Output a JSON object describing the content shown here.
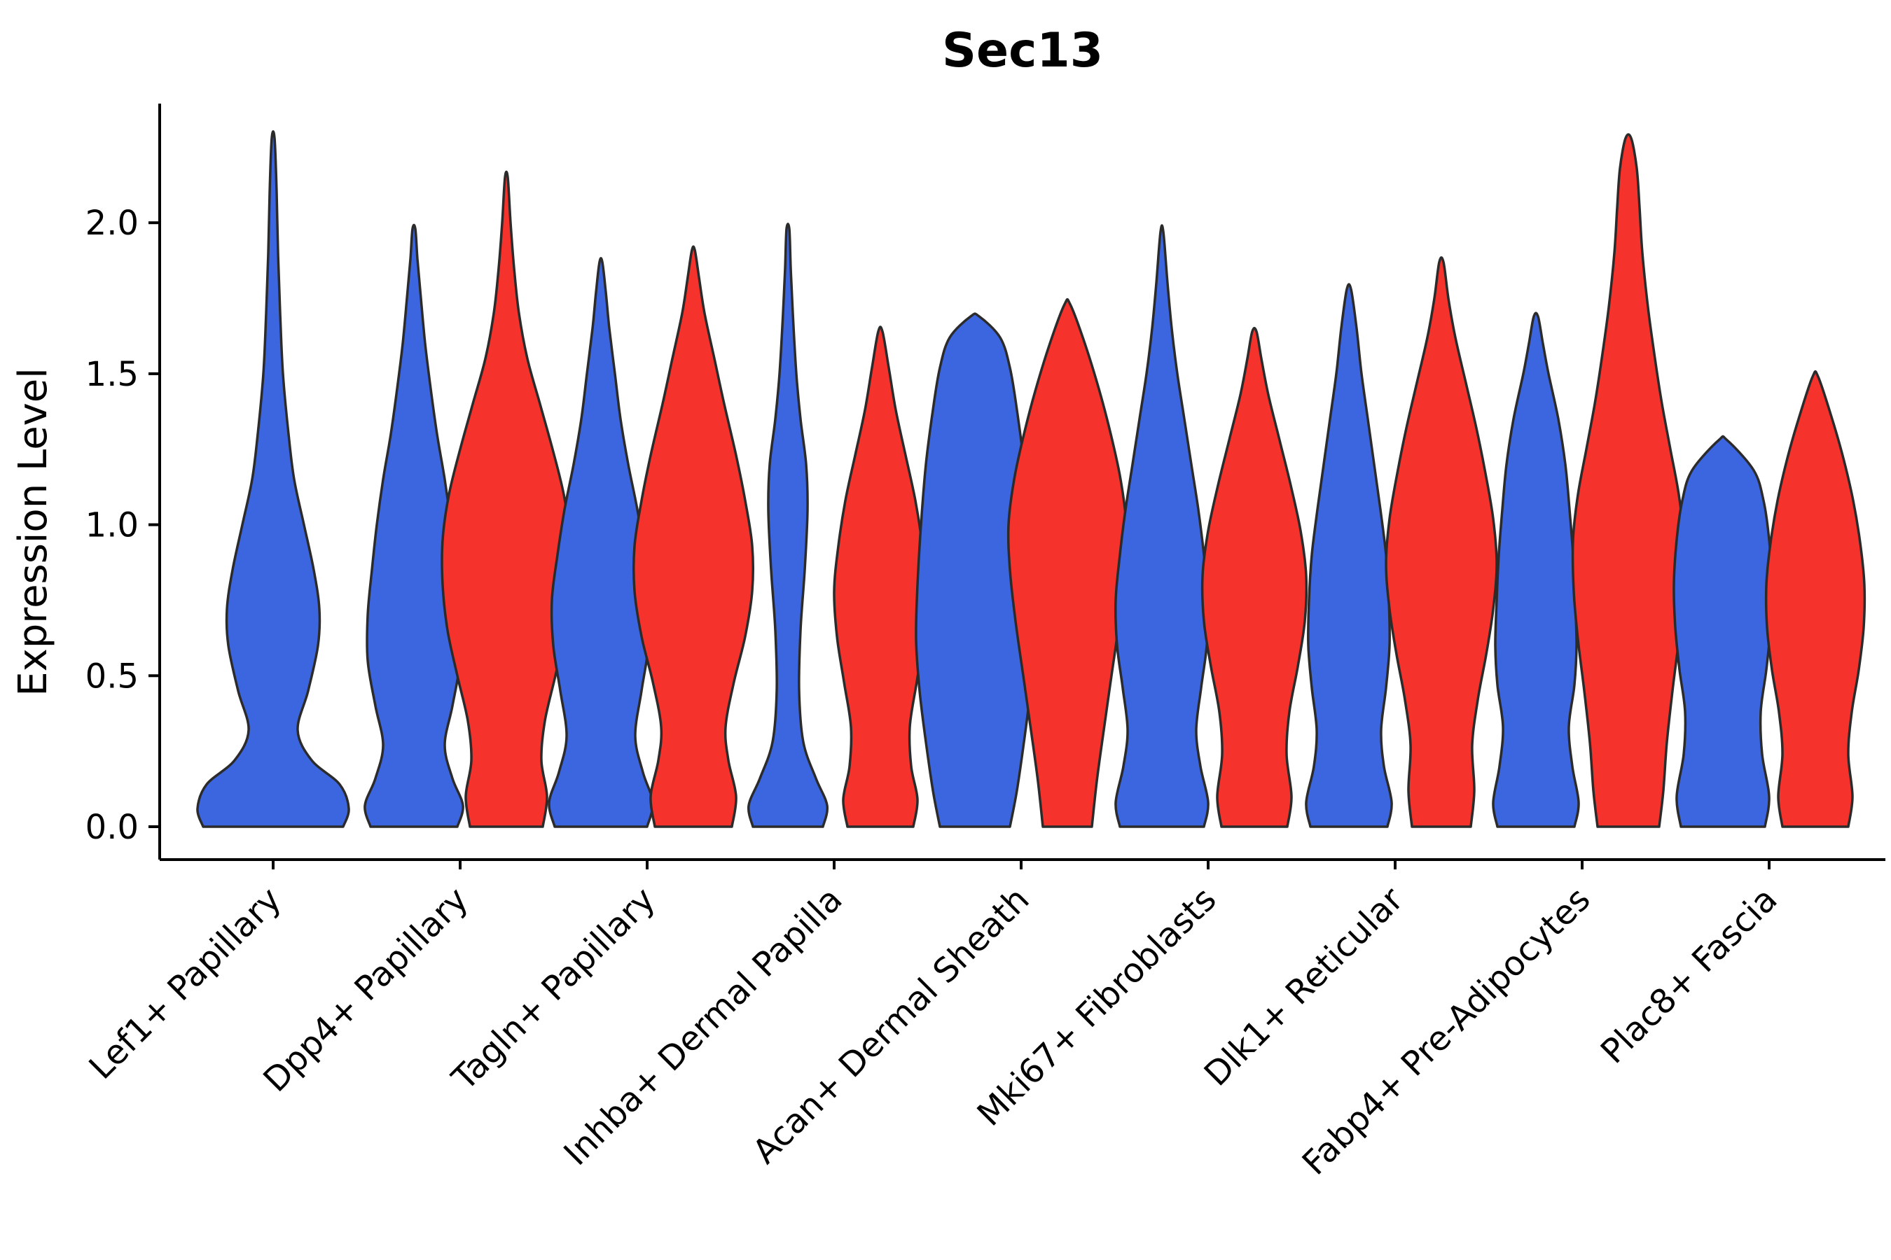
{
  "style": {
    "background": "#FFFFFF",
    "axis_color": "#000000",
    "text_color": "#000000",
    "edge_color": "#2B2B2B"
  },
  "chart_data": {
    "type": "violin",
    "title": "Sec13",
    "xlabel": "",
    "ylabel": "Expression Level",
    "legend": "none",
    "grid": false,
    "ylim": [
      -0.11,
      2.39
    ],
    "yticks": [
      "0.0",
      "0.5",
      "1.0",
      "1.5",
      "2.0"
    ],
    "ytick_values": [
      0,
      0.5,
      1.0,
      1.5,
      2.0
    ],
    "categories": [
      "Lef1+ Papillary",
      "Dpp4+ Papillary",
      "Tagln+ Papillary",
      "Inhba+ Dermal Papilla",
      "Acan+ Dermal Sheath",
      "Mki67+ Fibroblasts",
      "Dlk1+ Reticular",
      "Fabp4+ Pre-Adipocytes",
      "Plac8+ Fascia"
    ],
    "colors": {
      "blue": "#3C66E0",
      "red": "#F5322B"
    },
    "violins": [
      {
        "category_index": 0,
        "category": "Lef1+ Papillary",
        "group": "blue",
        "position": "center",
        "max_expression": 2.28,
        "profile": [
          [
            0,
            1.0
          ],
          [
            0.06,
            1.08
          ],
          [
            0.14,
            0.95
          ],
          [
            0.22,
            0.55
          ],
          [
            0.32,
            0.35
          ],
          [
            0.45,
            0.5
          ],
          [
            0.6,
            0.64
          ],
          [
            0.72,
            0.66
          ],
          [
            0.85,
            0.58
          ],
          [
            1.0,
            0.44
          ],
          [
            1.15,
            0.3
          ],
          [
            1.3,
            0.22
          ],
          [
            1.5,
            0.14
          ],
          [
            1.7,
            0.1
          ],
          [
            1.9,
            0.07
          ],
          [
            2.1,
            0.05
          ],
          [
            2.28,
            0.02
          ]
        ]
      },
      {
        "category_index": 1,
        "category": "Dpp4+ Papillary",
        "group": "blue",
        "position": "left",
        "max_expression": 1.98,
        "profile": [
          [
            0,
            0.62
          ],
          [
            0.07,
            0.7
          ],
          [
            0.16,
            0.55
          ],
          [
            0.27,
            0.44
          ],
          [
            0.4,
            0.55
          ],
          [
            0.55,
            0.66
          ],
          [
            0.7,
            0.66
          ],
          [
            0.85,
            0.6
          ],
          [
            1.0,
            0.53
          ],
          [
            1.15,
            0.44
          ],
          [
            1.3,
            0.33
          ],
          [
            1.45,
            0.24
          ],
          [
            1.6,
            0.16
          ],
          [
            1.75,
            0.1
          ],
          [
            1.88,
            0.05
          ],
          [
            1.98,
            0.02
          ]
        ]
      },
      {
        "category_index": 1,
        "category": "Dpp4+ Papillary",
        "group": "red",
        "position": "right",
        "max_expression": 2.15,
        "profile": [
          [
            0,
            0.52
          ],
          [
            0.1,
            0.58
          ],
          [
            0.22,
            0.5
          ],
          [
            0.35,
            0.55
          ],
          [
            0.5,
            0.7
          ],
          [
            0.65,
            0.84
          ],
          [
            0.8,
            0.91
          ],
          [
            0.95,
            0.91
          ],
          [
            1.1,
            0.82
          ],
          [
            1.25,
            0.66
          ],
          [
            1.4,
            0.48
          ],
          [
            1.55,
            0.3
          ],
          [
            1.7,
            0.18
          ],
          [
            1.85,
            0.11
          ],
          [
            2.0,
            0.06
          ],
          [
            2.15,
            0.02
          ]
        ]
      },
      {
        "category_index": 2,
        "category": "Tagln+ Papillary",
        "group": "blue",
        "position": "left",
        "max_expression": 1.87,
        "profile": [
          [
            0,
            0.66
          ],
          [
            0.08,
            0.74
          ],
          [
            0.18,
            0.6
          ],
          [
            0.3,
            0.49
          ],
          [
            0.45,
            0.58
          ],
          [
            0.6,
            0.68
          ],
          [
            0.75,
            0.7
          ],
          [
            0.9,
            0.62
          ],
          [
            1.05,
            0.52
          ],
          [
            1.2,
            0.39
          ],
          [
            1.35,
            0.28
          ],
          [
            1.5,
            0.2
          ],
          [
            1.65,
            0.12
          ],
          [
            1.77,
            0.07
          ],
          [
            1.87,
            0.02
          ]
        ]
      },
      {
        "category_index": 2,
        "category": "Tagln+ Papillary",
        "group": "red",
        "position": "right",
        "max_expression": 1.91,
        "profile": [
          [
            0,
            0.55
          ],
          [
            0.1,
            0.61
          ],
          [
            0.22,
            0.5
          ],
          [
            0.33,
            0.46
          ],
          [
            0.48,
            0.58
          ],
          [
            0.63,
            0.74
          ],
          [
            0.78,
            0.84
          ],
          [
            0.93,
            0.84
          ],
          [
            1.08,
            0.74
          ],
          [
            1.23,
            0.61
          ],
          [
            1.4,
            0.44
          ],
          [
            1.55,
            0.3
          ],
          [
            1.7,
            0.16
          ],
          [
            1.82,
            0.08
          ],
          [
            1.91,
            0.02
          ]
        ]
      },
      {
        "category_index": 3,
        "category": "Inhba+ Dermal Papilla",
        "group": "blue",
        "position": "left",
        "max_expression": 1.98,
        "profile": [
          [
            0,
            0.5
          ],
          [
            0.07,
            0.56
          ],
          [
            0.16,
            0.4
          ],
          [
            0.28,
            0.22
          ],
          [
            0.45,
            0.16
          ],
          [
            0.65,
            0.18
          ],
          [
            0.85,
            0.24
          ],
          [
            1.05,
            0.28
          ],
          [
            1.2,
            0.26
          ],
          [
            1.35,
            0.18
          ],
          [
            1.5,
            0.12
          ],
          [
            1.7,
            0.07
          ],
          [
            1.85,
            0.04
          ],
          [
            1.98,
            0.02
          ]
        ]
      },
      {
        "category_index": 3,
        "category": "Inhba+ Dermal Papilla",
        "group": "red",
        "position": "right",
        "max_expression": 1.64,
        "profile": [
          [
            0,
            0.47
          ],
          [
            0.09,
            0.53
          ],
          [
            0.2,
            0.44
          ],
          [
            0.33,
            0.42
          ],
          [
            0.48,
            0.52
          ],
          [
            0.63,
            0.62
          ],
          [
            0.78,
            0.66
          ],
          [
            0.93,
            0.6
          ],
          [
            1.08,
            0.5
          ],
          [
            1.23,
            0.36
          ],
          [
            1.38,
            0.22
          ],
          [
            1.52,
            0.12
          ],
          [
            1.64,
            0.03
          ]
        ]
      },
      {
        "category_index": 4,
        "category": "Acan+ Dermal Sheath",
        "group": "blue",
        "position": "left",
        "max_expression": 1.69,
        "profile": [
          [
            0,
            0.5
          ],
          [
            0.12,
            0.6
          ],
          [
            0.28,
            0.7
          ],
          [
            0.45,
            0.79
          ],
          [
            0.62,
            0.84
          ],
          [
            0.8,
            0.82
          ],
          [
            1.0,
            0.77
          ],
          [
            1.2,
            0.7
          ],
          [
            1.38,
            0.6
          ],
          [
            1.52,
            0.5
          ],
          [
            1.62,
            0.36
          ],
          [
            1.69,
            0.06
          ]
        ]
      },
      {
        "category_index": 4,
        "category": "Acan+ Dermal Sheath",
        "group": "red",
        "position": "right",
        "max_expression": 1.73,
        "profile": [
          [
            0,
            0.35
          ],
          [
            0.15,
            0.42
          ],
          [
            0.32,
            0.52
          ],
          [
            0.5,
            0.63
          ],
          [
            0.68,
            0.74
          ],
          [
            0.85,
            0.82
          ],
          [
            1.0,
            0.84
          ],
          [
            1.15,
            0.76
          ],
          [
            1.3,
            0.62
          ],
          [
            1.45,
            0.45
          ],
          [
            1.6,
            0.25
          ],
          [
            1.73,
            0.04
          ]
        ]
      },
      {
        "category_index": 5,
        "category": "Mki67+ Fibroblasts",
        "group": "blue",
        "position": "left",
        "max_expression": 1.97,
        "profile": [
          [
            0,
            0.6
          ],
          [
            0.08,
            0.66
          ],
          [
            0.2,
            0.55
          ],
          [
            0.32,
            0.49
          ],
          [
            0.46,
            0.56
          ],
          [
            0.6,
            0.64
          ],
          [
            0.75,
            0.66
          ],
          [
            0.9,
            0.6
          ],
          [
            1.05,
            0.52
          ],
          [
            1.2,
            0.42
          ],
          [
            1.35,
            0.32
          ],
          [
            1.5,
            0.22
          ],
          [
            1.65,
            0.14
          ],
          [
            1.8,
            0.08
          ],
          [
            1.97,
            0.02
          ]
        ]
      },
      {
        "category_index": 5,
        "category": "Mki67+ Fibroblasts",
        "group": "red",
        "position": "right",
        "max_expression": 1.64,
        "profile": [
          [
            0,
            0.47
          ],
          [
            0.1,
            0.53
          ],
          [
            0.24,
            0.46
          ],
          [
            0.38,
            0.5
          ],
          [
            0.53,
            0.62
          ],
          [
            0.68,
            0.72
          ],
          [
            0.83,
            0.74
          ],
          [
            0.98,
            0.66
          ],
          [
            1.13,
            0.52
          ],
          [
            1.28,
            0.36
          ],
          [
            1.43,
            0.2
          ],
          [
            1.55,
            0.1
          ],
          [
            1.64,
            0.03
          ]
        ]
      },
      {
        "category_index": 6,
        "category": "Dlk1+ Reticular",
        "group": "blue",
        "position": "left",
        "max_expression": 1.78,
        "profile": [
          [
            0,
            0.55
          ],
          [
            0.08,
            0.61
          ],
          [
            0.2,
            0.5
          ],
          [
            0.32,
            0.46
          ],
          [
            0.46,
            0.53
          ],
          [
            0.6,
            0.58
          ],
          [
            0.75,
            0.57
          ],
          [
            0.9,
            0.53
          ],
          [
            1.05,
            0.45
          ],
          [
            1.2,
            0.36
          ],
          [
            1.35,
            0.27
          ],
          [
            1.5,
            0.18
          ],
          [
            1.65,
            0.11
          ],
          [
            1.78,
            0.03
          ]
        ]
      },
      {
        "category_index": 6,
        "category": "Dlk1+ Reticular",
        "group": "red",
        "position": "right",
        "max_expression": 1.87,
        "profile": [
          [
            0,
            0.42
          ],
          [
            0.12,
            0.47
          ],
          [
            0.27,
            0.44
          ],
          [
            0.42,
            0.52
          ],
          [
            0.57,
            0.64
          ],
          [
            0.72,
            0.74
          ],
          [
            0.87,
            0.79
          ],
          [
            1.02,
            0.74
          ],
          [
            1.17,
            0.63
          ],
          [
            1.32,
            0.5
          ],
          [
            1.47,
            0.35
          ],
          [
            1.62,
            0.2
          ],
          [
            1.75,
            0.1
          ],
          [
            1.87,
            0.03
          ]
        ]
      },
      {
        "category_index": 7,
        "category": "Fabp4+ Pre-Adipocytes",
        "group": "blue",
        "position": "left",
        "max_expression": 1.69,
        "profile": [
          [
            0,
            0.55
          ],
          [
            0.08,
            0.61
          ],
          [
            0.2,
            0.52
          ],
          [
            0.33,
            0.47
          ],
          [
            0.47,
            0.55
          ],
          [
            0.6,
            0.58
          ],
          [
            0.75,
            0.56
          ],
          [
            0.9,
            0.53
          ],
          [
            1.05,
            0.48
          ],
          [
            1.2,
            0.42
          ],
          [
            1.35,
            0.32
          ],
          [
            1.5,
            0.18
          ],
          [
            1.6,
            0.1
          ],
          [
            1.69,
            0.03
          ]
        ]
      },
      {
        "category_index": 7,
        "category": "Fabp4+ Pre-Adipocytes",
        "group": "red",
        "position": "right",
        "max_expression": 2.28,
        "profile": [
          [
            0,
            0.44
          ],
          [
            0.12,
            0.5
          ],
          [
            0.28,
            0.55
          ],
          [
            0.45,
            0.63
          ],
          [
            0.62,
            0.72
          ],
          [
            0.78,
            0.78
          ],
          [
            0.95,
            0.79
          ],
          [
            1.1,
            0.72
          ],
          [
            1.25,
            0.6
          ],
          [
            1.4,
            0.48
          ],
          [
            1.55,
            0.38
          ],
          [
            1.72,
            0.28
          ],
          [
            1.9,
            0.2
          ],
          [
            2.05,
            0.16
          ],
          [
            2.18,
            0.12
          ],
          [
            2.28,
            0.04
          ]
        ]
      },
      {
        "category_index": 8,
        "category": "Plac8+ Fascia",
        "group": "blue",
        "position": "left",
        "max_expression": 1.28,
        "profile": [
          [
            0,
            0.6
          ],
          [
            0.1,
            0.66
          ],
          [
            0.24,
            0.56
          ],
          [
            0.38,
            0.54
          ],
          [
            0.52,
            0.62
          ],
          [
            0.66,
            0.68
          ],
          [
            0.8,
            0.7
          ],
          [
            0.95,
            0.66
          ],
          [
            1.08,
            0.58
          ],
          [
            1.18,
            0.44
          ],
          [
            1.28,
            0.06
          ]
        ]
      },
      {
        "category_index": 8,
        "category": "Plac8+ Fascia",
        "group": "red",
        "position": "right",
        "max_expression": 1.49,
        "profile": [
          [
            0,
            0.47
          ],
          [
            0.1,
            0.53
          ],
          [
            0.24,
            0.47
          ],
          [
            0.38,
            0.52
          ],
          [
            0.52,
            0.62
          ],
          [
            0.66,
            0.69
          ],
          [
            0.8,
            0.7
          ],
          [
            0.94,
            0.64
          ],
          [
            1.08,
            0.54
          ],
          [
            1.22,
            0.4
          ],
          [
            1.35,
            0.24
          ],
          [
            1.49,
            0.04
          ]
        ]
      }
    ]
  }
}
